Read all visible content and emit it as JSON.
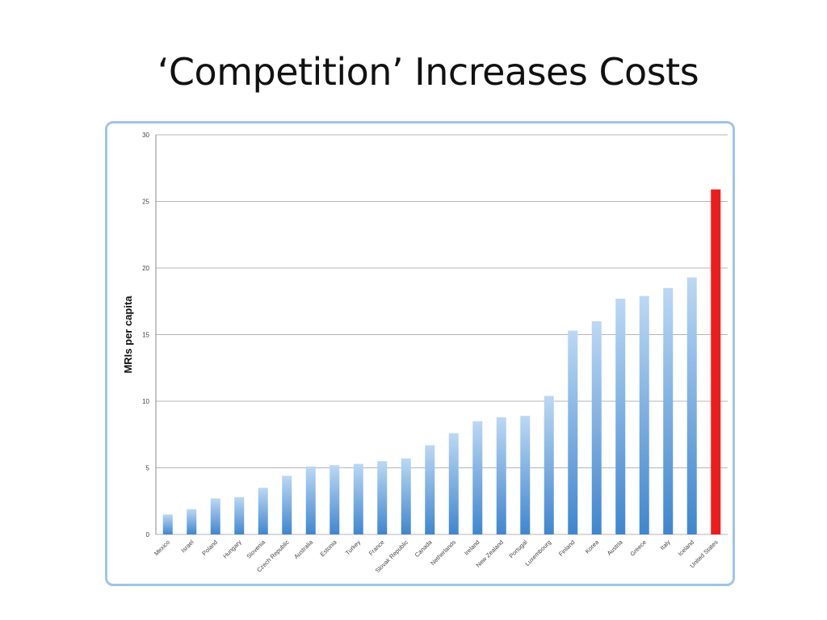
{
  "slide": {
    "title": "‘Competition’ Increases Costs"
  },
  "colors": {
    "bar_gradient_top": "#bcd8f4",
    "bar_gradient_bottom": "#3f86cf",
    "highlight": "#ee1c1c",
    "grid": "#b5b5b5"
  },
  "chart_data": {
    "type": "bar",
    "title": "",
    "xlabel": "",
    "ylabel": "MRIs per capita",
    "ylim": [
      0,
      30
    ],
    "yticks": [
      0,
      5,
      10,
      15,
      20,
      25,
      30
    ],
    "grid": true,
    "highlight_category": "United States",
    "categories": [
      "Mexico",
      "Israel",
      "Poland",
      "Hungary",
      "Slovenia",
      "Czech Republic",
      "Australia",
      "Estonia",
      "Turkey",
      "France",
      "Slovak Republic",
      "Canada",
      "Netherlands",
      "Ireland",
      "New Zealand",
      "Portugal",
      "Luxembourg",
      "Finland",
      "Korea",
      "Austria",
      "Greece",
      "Italy",
      "Iceland",
      "United States"
    ],
    "values": [
      1.5,
      1.9,
      2.7,
      2.8,
      3.5,
      4.4,
      5.1,
      5.2,
      5.3,
      5.5,
      5.7,
      6.7,
      7.6,
      8.5,
      8.8,
      8.9,
      10.4,
      15.3,
      16.0,
      17.7,
      17.9,
      18.5,
      19.3,
      25.9
    ]
  }
}
